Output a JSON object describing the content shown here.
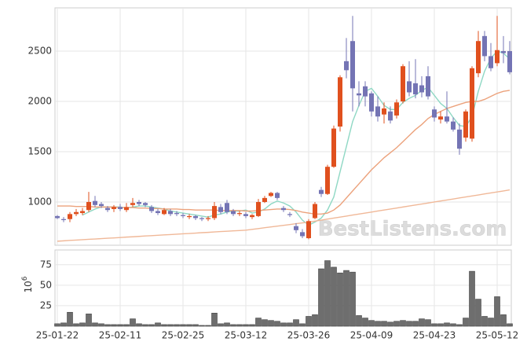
{
  "chart_data": {
    "type": "candlestick",
    "watermark": "BestListens.com",
    "categories": [
      "25-01-22",
      null,
      null,
      null,
      null,
      null,
      null,
      null,
      null,
      null,
      "25-02-11",
      null,
      null,
      null,
      null,
      null,
      null,
      null,
      null,
      null,
      "25-02-25",
      null,
      null,
      null,
      null,
      null,
      null,
      null,
      null,
      null,
      "25-03-12",
      null,
      null,
      null,
      null,
      null,
      null,
      null,
      null,
      null,
      "25-03-26",
      null,
      null,
      null,
      null,
      null,
      null,
      null,
      null,
      null,
      "25-04-09",
      null,
      null,
      null,
      null,
      null,
      null,
      null,
      null,
      null,
      "25-04-23",
      null,
      null,
      null,
      null,
      null,
      null,
      null,
      null,
      null,
      "25-05-12",
      null,
      null
    ],
    "open": [
      860,
      830,
      830,
      880,
      890,
      920,
      1010,
      980,
      940,
      930,
      950,
      920,
      970,
      1000,
      990,
      950,
      910,
      880,
      910,
      890,
      870,
      850,
      860,
      840,
      830,
      840,
      950,
      990,
      910,
      880,
      880,
      850,
      860,
      1000,
      1060,
      1090,
      940,
      880,
      760,
      700,
      640,
      840,
      1120,
      1080,
      1350,
      1750,
      2400,
      2600,
      2080,
      2150,
      2080,
      1950,
      1870,
      1900,
      1860,
      2000,
      2200,
      2180,
      2160,
      2250,
      1920,
      1820,
      1850,
      1800,
      1720,
      1640,
      1630,
      2280,
      2650,
      2450,
      2380,
      2500,
      2500
    ],
    "high": [
      870,
      850,
      900,
      930,
      940,
      1100,
      1060,
      1000,
      960,
      970,
      980,
      990,
      1040,
      1020,
      1000,
      970,
      930,
      940,
      930,
      910,
      890,
      880,
      870,
      850,
      860,
      1000,
      980,
      1020,
      930,
      910,
      900,
      880,
      1030,
      1060,
      1100,
      1100,
      960,
      900,
      790,
      730,
      830,
      1000,
      1150,
      1370,
      1760,
      2260,
      2630,
      2850,
      2200,
      2200,
      2100,
      2050,
      1990,
      1950,
      2020,
      2370,
      2400,
      2420,
      2250,
      2350,
      1950,
      1900,
      2100,
      1840,
      1780,
      1920,
      2350,
      2700,
      2700,
      2580,
      2850,
      2650,
      2600
    ],
    "low": [
      830,
      800,
      800,
      860,
      870,
      900,
      950,
      940,
      900,
      900,
      910,
      900,
      950,
      960,
      950,
      890,
      870,
      870,
      860,
      860,
      840,
      830,
      820,
      810,
      810,
      820,
      880,
      880,
      860,
      860,
      840,
      830,
      850,
      990,
      1050,
      1020,
      900,
      850,
      690,
      640,
      630,
      830,
      1050,
      1070,
      1340,
      1700,
      2230,
      1900,
      1950,
      1950,
      1850,
      1800,
      1780,
      1780,
      1830,
      1980,
      2050,
      2030,
      2040,
      2020,
      1800,
      1780,
      1780,
      1700,
      1470,
      1600,
      1600,
      2240,
      2400,
      2300,
      2350,
      2380,
      2270
    ],
    "close": [
      840,
      820,
      880,
      900,
      910,
      1000,
      970,
      960,
      920,
      950,
      930,
      950,
      990,
      980,
      970,
      910,
      890,
      920,
      880,
      880,
      860,
      860,
      840,
      830,
      840,
      960,
      900,
      900,
      880,
      890,
      860,
      870,
      1000,
      1040,
      1090,
      1040,
      920,
      870,
      720,
      660,
      810,
      980,
      1080,
      1350,
      1730,
      2240,
      2310,
      2130,
      2060,
      2050,
      1900,
      1850,
      1930,
      1810,
      1990,
      2350,
      2090,
      2070,
      2090,
      2050,
      1840,
      1850,
      1800,
      1720,
      1530,
      1900,
      2330,
      2600,
      2450,
      2330,
      2510,
      2480,
      2290
    ],
    "up_color": "#e0501e",
    "down_color": "#7474b4",
    "moving_averages": [
      {
        "color": "#8fd8c4",
        "values": [
          null,
          null,
          null,
          null,
          870,
          900,
          930,
          950,
          950,
          950,
          950,
          940,
          950,
          960,
          960,
          950,
          940,
          930,
          910,
          900,
          890,
          880,
          870,
          860,
          850,
          870,
          880,
          900,
          910,
          910,
          920,
          890,
          900,
          930,
          980,
          1010,
          990,
          960,
          900,
          820,
          770,
          800,
          840,
          920,
          1050,
          1300,
          1550,
          1800,
          1960,
          2100,
          2130,
          2050,
          1960,
          1920,
          1920,
          1990,
          2030,
          2060,
          2110,
          2140,
          2060,
          1980,
          1930,
          1840,
          1760,
          1750,
          1850,
          2100,
          2300,
          2430,
          2500,
          2480,
          2420
        ]
      },
      {
        "color": "#eca27c",
        "values": [
          960,
          960,
          960,
          955,
          955,
          955,
          950,
          950,
          950,
          950,
          945,
          945,
          945,
          940,
          940,
          935,
          935,
          930,
          930,
          930,
          925,
          925,
          920,
          920,
          920,
          920,
          915,
          915,
          915,
          915,
          910,
          910,
          915,
          920,
          925,
          930,
          930,
          925,
          915,
          900,
          890,
          880,
          880,
          890,
          920,
          970,
          1040,
          1110,
          1180,
          1250,
          1320,
          1380,
          1440,
          1490,
          1540,
          1600,
          1660,
          1720,
          1770,
          1830,
          1870,
          1900,
          1930,
          1950,
          1970,
          1990,
          2000,
          2000,
          2020,
          2050,
          2080,
          2100,
          2110
        ]
      },
      {
        "color": "#f0b898",
        "values": [
          610,
          614,
          618,
          621,
          625,
          629,
          632,
          636,
          640,
          643,
          647,
          651,
          654,
          658,
          662,
          665,
          669,
          673,
          676,
          680,
          684,
          687,
          691,
          695,
          698,
          702,
          706,
          709,
          713,
          716,
          720,
          728,
          736,
          744,
          752,
          760,
          768,
          776,
          784,
          792,
          800,
          810,
          820,
          830,
          840,
          850,
          860,
          870,
          880,
          890,
          900,
          910,
          920,
          930,
          940,
          950,
          960,
          970,
          980,
          990,
          1000,
          1010,
          1020,
          1030,
          1040,
          1050,
          1060,
          1070,
          1080,
          1090,
          1100,
          1110,
          1120
        ]
      }
    ],
    "ylim": [
      570,
      2930
    ],
    "yticks": [
      1000,
      1500,
      2000,
      2500
    ],
    "grid": true,
    "volume": {
      "label_base": "10",
      "label_exponent": "6",
      "color": "#6e6e6e",
      "values": [
        3,
        4,
        17,
        3,
        4,
        15,
        4,
        3,
        2,
        2,
        2,
        2,
        9,
        3,
        2,
        2,
        4,
        2,
        2,
        2,
        2,
        2,
        2,
        1,
        1,
        16,
        3,
        4,
        2,
        2,
        2,
        2,
        10,
        8,
        7,
        6,
        4,
        4,
        8,
        3,
        12,
        14,
        70,
        80,
        72,
        65,
        68,
        66,
        13,
        10,
        7,
        6,
        6,
        5,
        6,
        7,
        6,
        6,
        9,
        8,
        3,
        3,
        4,
        3,
        2,
        10,
        67,
        33,
        12,
        10,
        36,
        14,
        3
      ],
      "ylim": [
        0,
        93
      ],
      "yticks": [
        25,
        50,
        75
      ]
    }
  }
}
